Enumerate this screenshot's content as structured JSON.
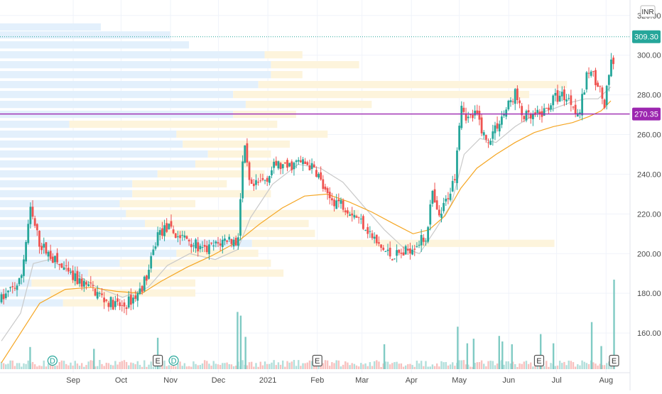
{
  "currency_label": "INR",
  "colors": {
    "up": "#26a69a",
    "down": "#ef5350",
    "ma_fast": "#c9c9c9",
    "ma_slow": "#f5a623",
    "profile_blue": "#e3f0fc",
    "profile_yellow": "#fdf4dc",
    "level_line": "#9c27b0",
    "last_price_bg": "#26a69a",
    "axis_text": "#4a4a4a"
  },
  "chart_data": {
    "type": "candlestick",
    "y_axis": {
      "min": 140,
      "max": 326,
      "ticks": [
        160,
        180,
        200,
        220,
        240,
        260,
        280,
        300,
        320
      ]
    },
    "x_axis_labels": [
      {
        "label": "Sep",
        "day": 45
      },
      {
        "label": "Oct",
        "day": 75
      },
      {
        "label": "Nov",
        "day": 106
      },
      {
        "label": "Dec",
        "day": 136
      },
      {
        "label": "2021",
        "day": 167
      },
      {
        "label": "Feb",
        "day": 198
      },
      {
        "label": "Mar",
        "day": 226
      },
      {
        "label": "Apr",
        "day": 257
      },
      {
        "label": "May",
        "day": 287
      },
      {
        "label": "Jun",
        "day": 318
      },
      {
        "label": "Jul",
        "day": 348
      },
      {
        "label": "Aug",
        "day": 379
      }
    ],
    "price_path": [
      [
        0,
        177
      ],
      [
        12,
        186
      ],
      [
        18,
        222
      ],
      [
        24,
        205
      ],
      [
        34,
        196
      ],
      [
        44,
        188
      ],
      [
        56,
        183
      ],
      [
        66,
        176
      ],
      [
        76,
        173
      ],
      [
        86,
        180
      ],
      [
        92,
        190
      ],
      [
        98,
        210
      ],
      [
        104,
        213
      ],
      [
        110,
        209
      ],
      [
        118,
        207
      ],
      [
        126,
        201
      ],
      [
        134,
        204
      ],
      [
        142,
        208
      ],
      [
        148,
        205
      ],
      [
        152,
        255
      ],
      [
        156,
        232
      ],
      [
        166,
        238
      ],
      [
        172,
        245
      ],
      [
        178,
        243
      ],
      [
        186,
        246
      ],
      [
        192,
        245
      ],
      [
        198,
        241
      ],
      [
        204,
        228
      ],
      [
        212,
        226
      ],
      [
        220,
        221
      ],
      [
        228,
        214
      ],
      [
        236,
        204
      ],
      [
        244,
        199
      ],
      [
        252,
        200
      ],
      [
        258,
        204
      ],
      [
        266,
        208
      ],
      [
        270,
        230
      ],
      [
        274,
        217
      ],
      [
        278,
        225
      ],
      [
        284,
        238
      ],
      [
        288,
        277
      ],
      [
        292,
        268
      ],
      [
        298,
        270
      ],
      [
        304,
        256
      ],
      [
        310,
        264
      ],
      [
        316,
        272
      ],
      [
        322,
        281
      ],
      [
        326,
        270
      ],
      [
        332,
        268
      ],
      [
        340,
        271
      ],
      [
        346,
        278
      ],
      [
        352,
        280
      ],
      [
        358,
        276
      ],
      [
        362,
        270
      ],
      [
        368,
        293
      ],
      [
        374,
        286
      ],
      [
        378,
        274
      ],
      [
        382,
        296
      ]
    ],
    "fast_ma_path": [
      [
        0,
        156
      ],
      [
        12,
        170
      ],
      [
        20,
        195
      ],
      [
        30,
        197
      ],
      [
        44,
        191
      ],
      [
        60,
        183
      ],
      [
        76,
        178
      ],
      [
        92,
        183
      ],
      [
        104,
        194
      ],
      [
        118,
        200
      ],
      [
        134,
        197
      ],
      [
        148,
        202
      ],
      [
        156,
        218
      ],
      [
        170,
        235
      ],
      [
        186,
        245
      ],
      [
        200,
        243
      ],
      [
        214,
        236
      ],
      [
        228,
        223
      ],
      [
        240,
        212
      ],
      [
        252,
        203
      ],
      [
        262,
        200
      ],
      [
        272,
        212
      ],
      [
        282,
        225
      ],
      [
        290,
        250
      ],
      [
        300,
        258
      ],
      [
        310,
        256
      ],
      [
        322,
        264
      ],
      [
        334,
        270
      ],
      [
        346,
        273
      ],
      [
        356,
        276
      ],
      [
        366,
        278
      ],
      [
        374,
        278
      ],
      [
        382,
        284
      ]
    ],
    "slow_ma_path": [
      [
        0,
        145
      ],
      [
        12,
        160
      ],
      [
        24,
        175
      ],
      [
        40,
        182
      ],
      [
        56,
        183
      ],
      [
        72,
        181
      ],
      [
        88,
        180
      ],
      [
        100,
        186
      ],
      [
        116,
        193
      ],
      [
        132,
        199
      ],
      [
        148,
        206
      ],
      [
        162,
        215
      ],
      [
        176,
        223
      ],
      [
        190,
        229
      ],
      [
        204,
        230
      ],
      [
        218,
        226
      ],
      [
        232,
        221
      ],
      [
        246,
        215
      ],
      [
        258,
        210
      ],
      [
        268,
        212
      ],
      [
        278,
        219
      ],
      [
        288,
        233
      ],
      [
        298,
        243
      ],
      [
        310,
        250
      ],
      [
        322,
        256
      ],
      [
        334,
        261
      ],
      [
        346,
        264
      ],
      [
        358,
        266
      ],
      [
        368,
        269
      ],
      [
        376,
        272
      ],
      [
        382,
        277
      ]
    ],
    "volume_profile": [
      {
        "price": 314,
        "blue": 0.16,
        "yellow": 0.0
      },
      {
        "price": 310,
        "blue": 0.27,
        "yellow": 0.0
      },
      {
        "price": 305,
        "blue": 0.3,
        "yellow": 0.0
      },
      {
        "price": 300,
        "blue": 0.42,
        "yellow": 0.06
      },
      {
        "price": 295,
        "blue": 0.43,
        "yellow": 0.14
      },
      {
        "price": 290,
        "blue": 0.43,
        "yellow": 0.05
      },
      {
        "price": 285,
        "blue": 0.41,
        "yellow": 0.49
      },
      {
        "price": 280,
        "blue": 0.37,
        "yellow": 0.47
      },
      {
        "price": 275,
        "blue": 0.39,
        "yellow": 0.2
      },
      {
        "price": 270,
        "blue": 0.37,
        "yellow": 0.1
      },
      {
        "price": 265,
        "blue": 0.11,
        "yellow": 0.33
      },
      {
        "price": 260,
        "blue": 0.28,
        "yellow": 0.24
      },
      {
        "price": 255,
        "blue": 0.29,
        "yellow": 0.17
      },
      {
        "price": 250,
        "blue": 0.33,
        "yellow": 0.1
      },
      {
        "price": 245,
        "blue": 0.31,
        "yellow": 0.15
      },
      {
        "price": 240,
        "blue": 0.25,
        "yellow": 0.17
      },
      {
        "price": 235,
        "blue": 0.21,
        "yellow": 0.15
      },
      {
        "price": 230,
        "blue": 0.21,
        "yellow": 0.22
      },
      {
        "price": 225,
        "blue": 0.19,
        "yellow": 0.12
      },
      {
        "price": 220,
        "blue": 0.2,
        "yellow": 0.37
      },
      {
        "price": 215,
        "blue": 0.23,
        "yellow": 0.26
      },
      {
        "price": 210,
        "blue": 0.25,
        "yellow": 0.25
      },
      {
        "price": 205,
        "blue": 0.4,
        "yellow": 0.48
      },
      {
        "price": 200,
        "blue": 0.28,
        "yellow": 0.13
      },
      {
        "price": 195,
        "blue": 0.19,
        "yellow": 0.24
      },
      {
        "price": 190,
        "blue": 0.14,
        "yellow": 0.31
      },
      {
        "price": 185,
        "blue": 0.05,
        "yellow": 0.26
      },
      {
        "price": 180,
        "blue": 0.08,
        "yellow": 0.23
      },
      {
        "price": 175,
        "blue": 0.1,
        "yellow": 0.08
      }
    ],
    "volume_spikes": [
      {
        "day": 148,
        "size": 0.62
      },
      {
        "day": 150,
        "size": 0.58
      },
      {
        "day": 153,
        "size": 0.35
      },
      {
        "day": 98,
        "size": 0.34
      },
      {
        "day": 18,
        "size": 0.24
      },
      {
        "day": 58,
        "size": 0.22
      },
      {
        "day": 240,
        "size": 0.27
      },
      {
        "day": 286,
        "size": 0.46
      },
      {
        "day": 292,
        "size": 0.28
      },
      {
        "day": 296,
        "size": 0.33
      },
      {
        "day": 312,
        "size": 0.36
      },
      {
        "day": 314,
        "size": 0.3
      },
      {
        "day": 320,
        "size": 0.27
      },
      {
        "day": 338,
        "size": 0.38
      },
      {
        "day": 346,
        "size": 0.28
      },
      {
        "day": 370,
        "size": 0.51
      },
      {
        "day": 376,
        "size": 0.25
      },
      {
        "day": 384,
        "size": 0.97
      }
    ],
    "event_markers": [
      {
        "label": "D",
        "day": 32,
        "shape": "circle"
      },
      {
        "label": "E",
        "day": 98,
        "shape": "square"
      },
      {
        "label": "D",
        "day": 108,
        "shape": "circle"
      },
      {
        "label": "E",
        "day": 198,
        "shape": "square"
      },
      {
        "label": "E",
        "day": 337,
        "shape": "square"
      },
      {
        "label": "E",
        "day": 384,
        "shape": "square"
      }
    ],
    "last_price": {
      "label": "309.30",
      "value": 309.3
    },
    "level_line": {
      "label": "270.35",
      "value": 270.35
    }
  }
}
